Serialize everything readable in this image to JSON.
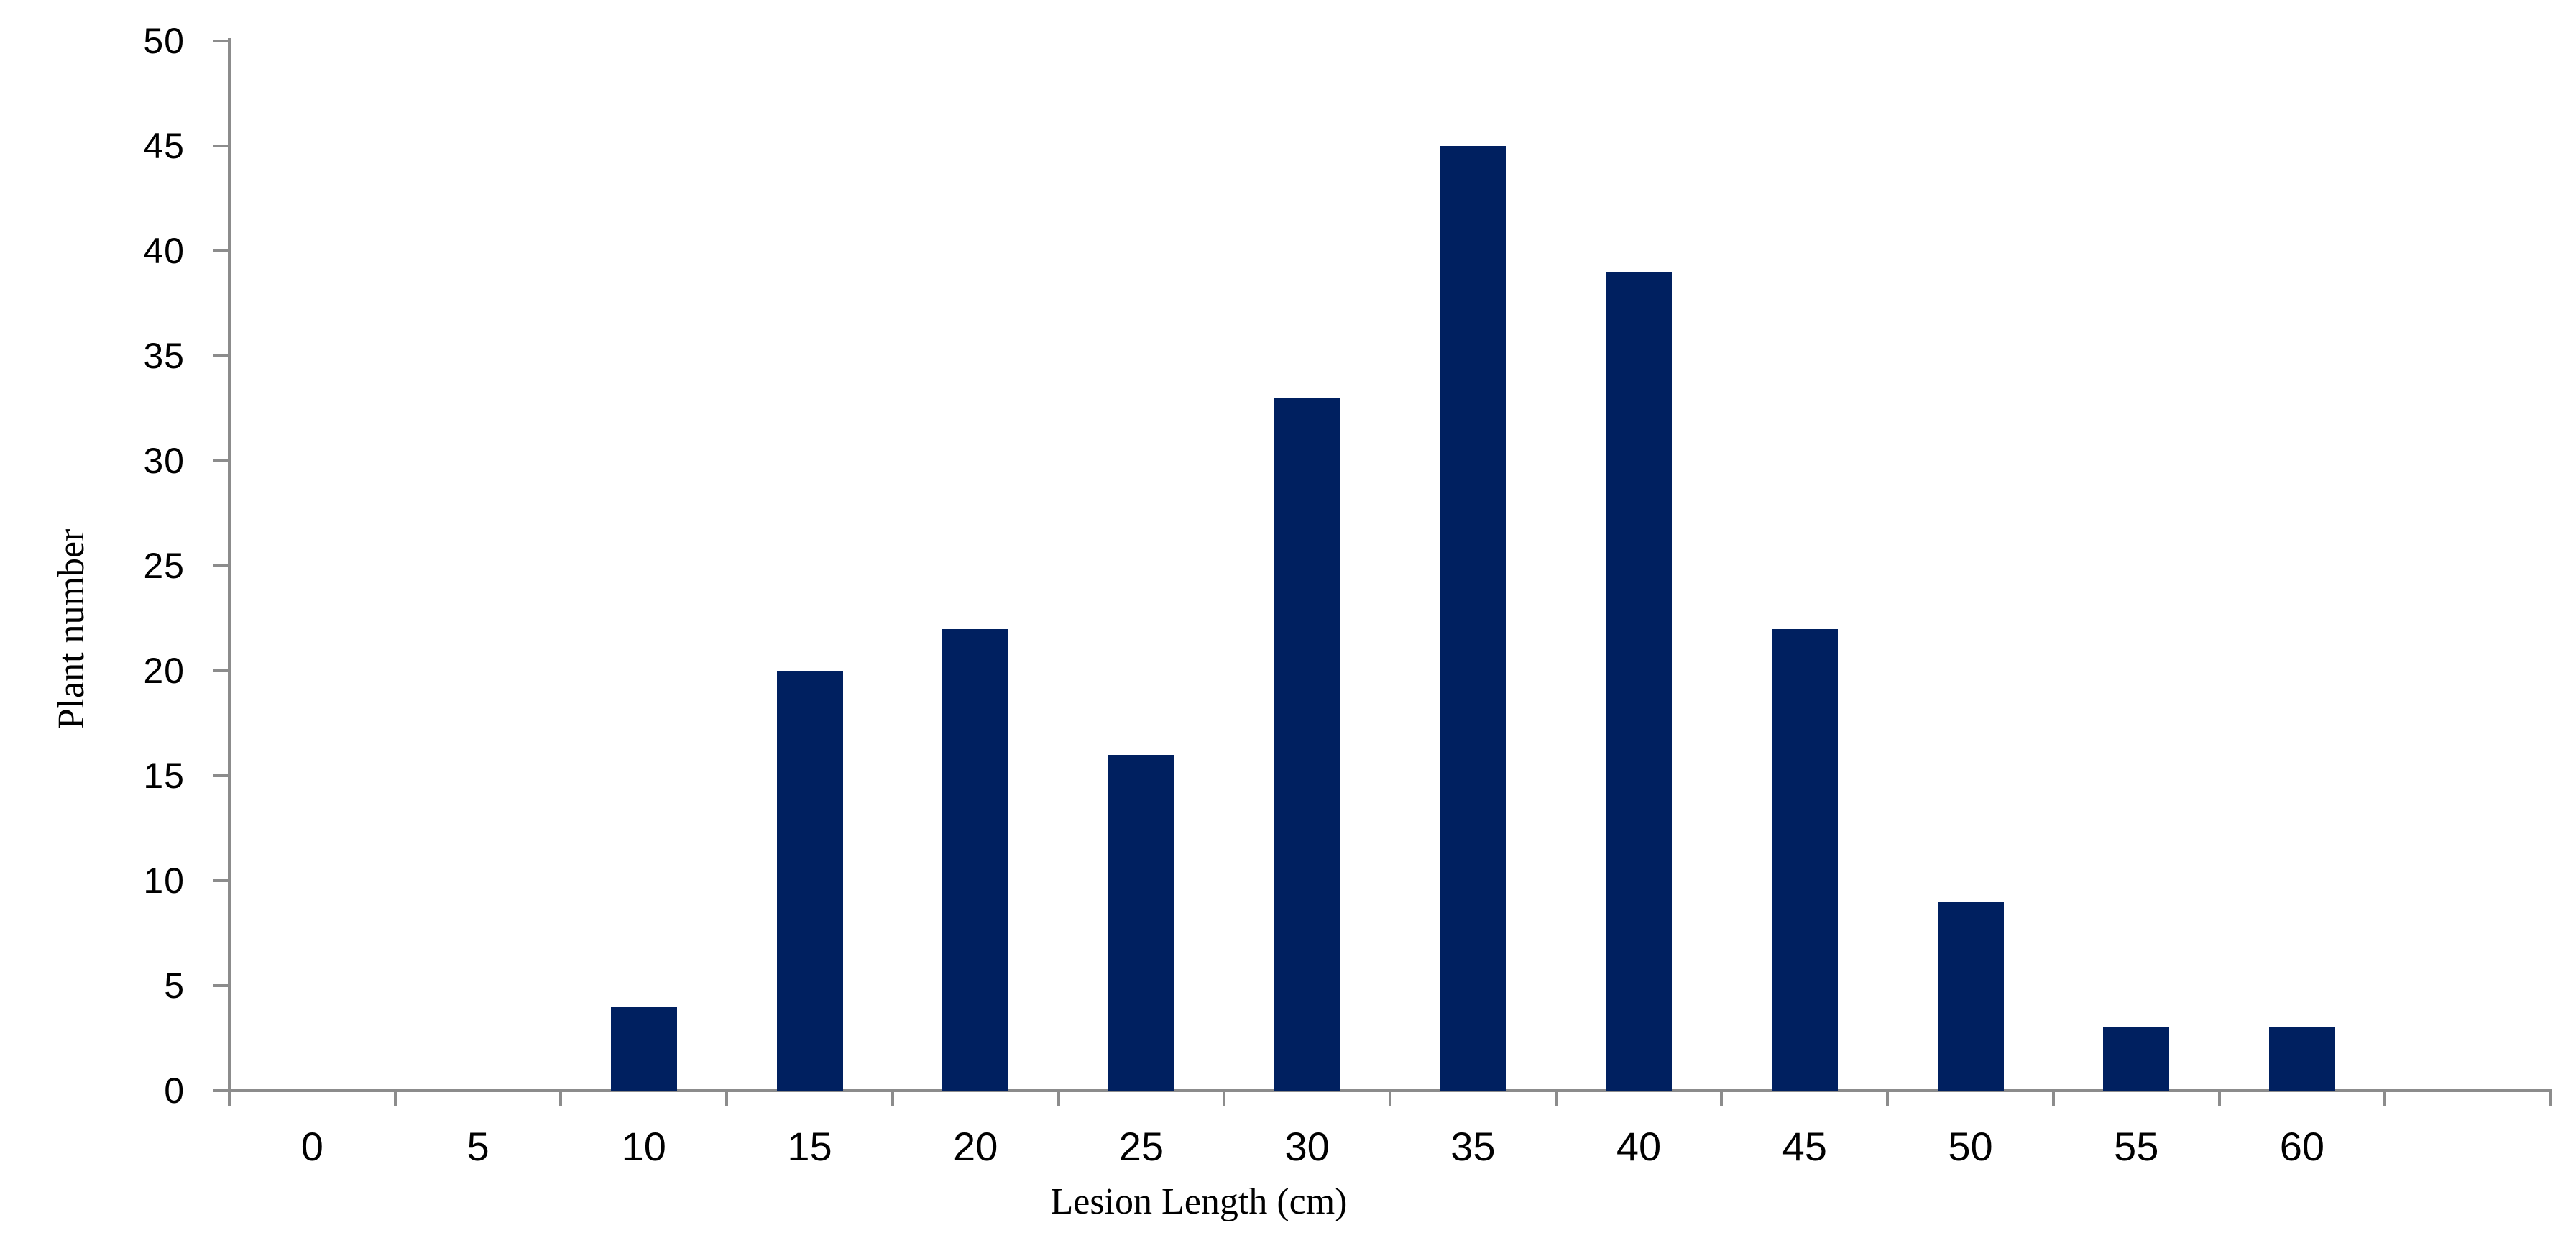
{
  "chart_data": {
    "type": "bar",
    "title": "",
    "xlabel": "Lesion Length (cm)",
    "ylabel": "Plant number",
    "categories": [
      0,
      5,
      10,
      15,
      20,
      25,
      30,
      35,
      40,
      45,
      50,
      55,
      60
    ],
    "x_tick_labels": [
      "0",
      "5",
      "10",
      "15",
      "20",
      "25",
      "30",
      "35",
      "40",
      "45",
      "50",
      "55",
      "60"
    ],
    "values": [
      0,
      0,
      4,
      20,
      22,
      16,
      33,
      45,
      39,
      22,
      9,
      3,
      3
    ],
    "series_name": "Plant number",
    "y_ticks": [
      0,
      5,
      10,
      15,
      20,
      25,
      30,
      35,
      40,
      45,
      50
    ],
    "ylim": [
      0,
      50
    ],
    "xlim_slots": 14,
    "empty_trailing_slots": 1,
    "grid": false,
    "legend_position": "none",
    "bar_color": "#002060",
    "axis_color": "#8c8c8c",
    "text_color": "#000000",
    "background_color": "#ffffff"
  }
}
